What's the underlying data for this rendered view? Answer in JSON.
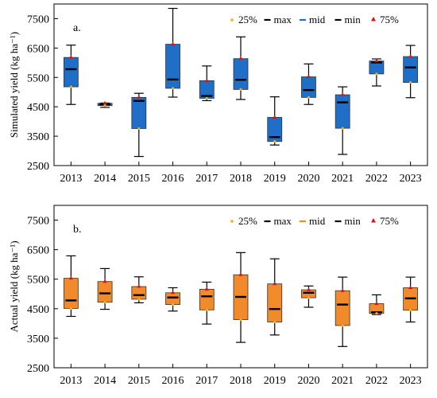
{
  "chart_data": [
    {
      "type": "box",
      "panel_label": "a.",
      "ylabel": "Simulated yield (kg ha⁻¹)",
      "ylim": [
        2500,
        8000
      ],
      "yticks": [
        2500,
        3500,
        4500,
        5500,
        6500,
        7500
      ],
      "categories": [
        "2013",
        "2014",
        "2015",
        "2016",
        "2017",
        "2018",
        "2019",
        "2020",
        "2021",
        "2022",
        "2023"
      ],
      "box_color": "#1f6fc9",
      "legend": [
        {
          "label": "25%",
          "symbol": "dot",
          "color": "#f2b01e"
        },
        {
          "label": "max",
          "symbol": "dash",
          "color": "#000000"
        },
        {
          "label": "mid",
          "symbol": "dash",
          "color": "#1f6fc9"
        },
        {
          "label": "min",
          "symbol": "dash",
          "color": "#000000"
        },
        {
          "label": "75%",
          "symbol": "triangle",
          "color": "#e01010"
        }
      ],
      "boxes": [
        {
          "min": 4580,
          "q1": 5180,
          "median": 5780,
          "q3": 6180,
          "max": 6600
        },
        {
          "min": 4480,
          "q1": 4540,
          "median": 4580,
          "q3": 4620,
          "max": 4630
        },
        {
          "min": 2810,
          "q1": 3760,
          "median": 4700,
          "q3": 4820,
          "max": 4960
        },
        {
          "min": 4830,
          "q1": 5130,
          "median": 5430,
          "q3": 6630,
          "max": 7850
        },
        {
          "min": 4710,
          "q1": 4790,
          "median": 4870,
          "q3": 5390,
          "max": 5890
        },
        {
          "min": 4750,
          "q1": 5090,
          "median": 5420,
          "q3": 6140,
          "max": 6880
        },
        {
          "min": 3200,
          "q1": 3320,
          "median": 3470,
          "q3": 4140,
          "max": 4840
        },
        {
          "min": 4580,
          "q1": 4820,
          "median": 5070,
          "q3": 5520,
          "max": 5960
        },
        {
          "min": 2880,
          "q1": 3770,
          "median": 4650,
          "q3": 4910,
          "max": 5180
        },
        {
          "min": 5210,
          "q1": 5620,
          "median": 6010,
          "q3": 6060,
          "max": 6130
        },
        {
          "min": 4810,
          "q1": 5330,
          "median": 5840,
          "q3": 6210,
          "max": 6590
        }
      ]
    },
    {
      "type": "box",
      "panel_label": "b.",
      "ylabel": "Actual yield (kg ha⁻¹)",
      "ylim": [
        2500,
        8000
      ],
      "yticks": [
        2500,
        3500,
        4500,
        5500,
        6500,
        7500
      ],
      "categories": [
        "2013",
        "2014",
        "2015",
        "2016",
        "2017",
        "2018",
        "2019",
        "2020",
        "2021",
        "2022",
        "2023"
      ],
      "box_color": "#f08a2a",
      "legend": [
        {
          "label": "25%",
          "symbol": "dot",
          "color": "#f2b01e"
        },
        {
          "label": "max",
          "symbol": "dash",
          "color": "#000000"
        },
        {
          "label": "mid",
          "symbol": "dash",
          "color": "#f08a2a"
        },
        {
          "label": "min",
          "symbol": "dash",
          "color": "#000000"
        },
        {
          "label": "75%",
          "symbol": "triangle",
          "color": "#e01010"
        }
      ],
      "boxes": [
        {
          "min": 4240,
          "q1": 4510,
          "median": 4780,
          "q3": 5530,
          "max": 6290
        },
        {
          "min": 4480,
          "q1": 4720,
          "median": 5020,
          "q3": 5420,
          "max": 5860
        },
        {
          "min": 4700,
          "q1": 4820,
          "median": 4960,
          "q3": 5250,
          "max": 5580
        },
        {
          "min": 4420,
          "q1": 4640,
          "median": 4880,
          "q3": 5040,
          "max": 5210
        },
        {
          "min": 3980,
          "q1": 4460,
          "median": 4920,
          "q3": 5160,
          "max": 5400
        },
        {
          "min": 3360,
          "q1": 4130,
          "median": 4900,
          "q3": 5650,
          "max": 6400
        },
        {
          "min": 3610,
          "q1": 4050,
          "median": 4490,
          "q3": 5340,
          "max": 6190
        },
        {
          "min": 4550,
          "q1": 4870,
          "median": 5040,
          "q3": 5140,
          "max": 5270
        },
        {
          "min": 3220,
          "q1": 3930,
          "median": 4640,
          "q3": 5110,
          "max": 5570
        },
        {
          "min": 4300,
          "q1": 4340,
          "median": 4380,
          "q3": 4670,
          "max": 4970
        },
        {
          "min": 4050,
          "q1": 4450,
          "median": 4850,
          "q3": 5210,
          "max": 5570
        }
      ]
    }
  ]
}
